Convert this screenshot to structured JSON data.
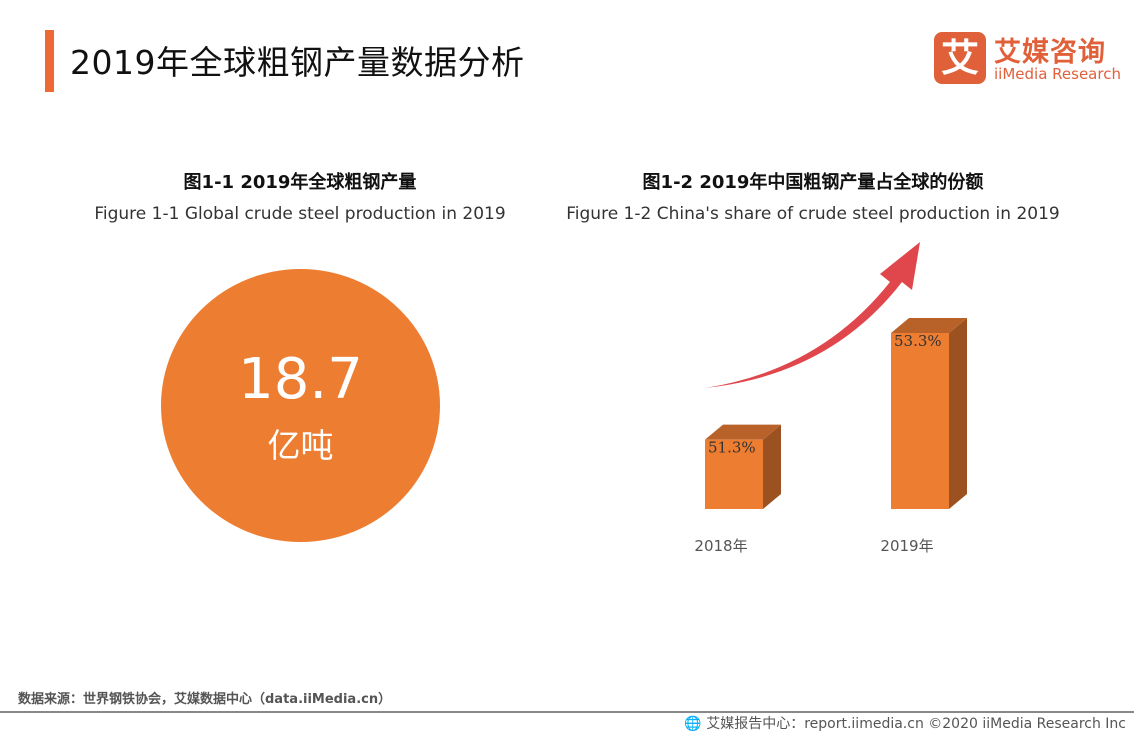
{
  "header": {
    "title": "2019年全球粗钢产量数据分析"
  },
  "logo": {
    "mark": "艾",
    "name_cn": "艾媒咨询",
    "name_en": "iiMedia Research"
  },
  "figure1": {
    "title_cn": "图1-1 2019年全球粗钢产量",
    "title_en": "Figure 1-1 Global crude steel production in 2019",
    "value": "18.7",
    "unit": "亿吨"
  },
  "figure2": {
    "title_cn": "图1-2 2019年中国粗钢产量占全球的份额",
    "title_en": "Figure 1-2 China's share of crude steel production in 2019"
  },
  "chart_data": {
    "type": "bar",
    "style": "3d-column with upward trend arrow",
    "categories": [
      "2018年",
      "2019年"
    ],
    "values": [
      51.3,
      53.3
    ],
    "data_labels": [
      "51.3%",
      "53.3%"
    ],
    "ylim": [
      50,
      53.6
    ],
    "grid": false,
    "colors": {
      "bar": "#ed7d31",
      "bar_side": "#9c5220",
      "bar_top": "#b8622a",
      "arrow": "#e0474c"
    }
  },
  "source": "数据来源：世界钢铁协会，艾媒数据中心（data.iiMedia.cn）",
  "footer": {
    "icon": "globe-icon",
    "text": "艾媒报告中心：report.iimedia.cn  ©2020  iiMedia Research  Inc"
  }
}
